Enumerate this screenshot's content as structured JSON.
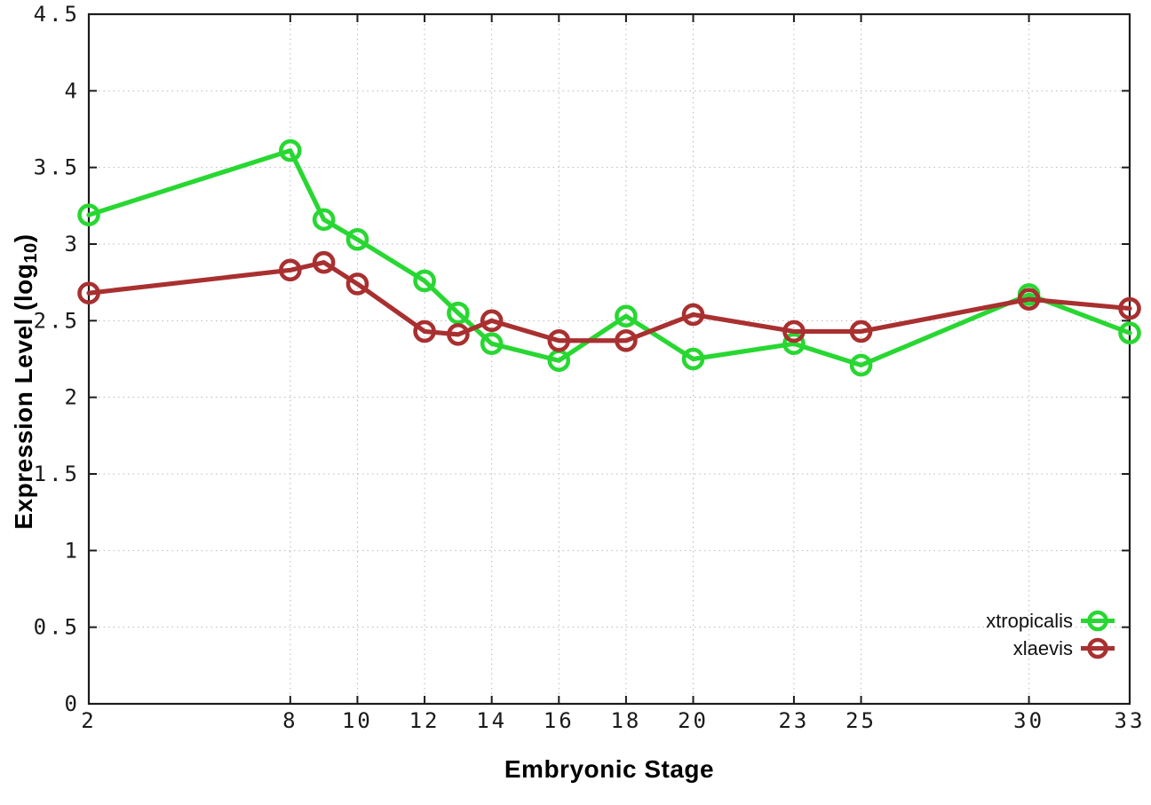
{
  "chart_data": {
    "type": "line",
    "title": "",
    "xlabel": "Embryonic Stage",
    "ylabel": {
      "prefix": "Expression Level (log",
      "sub": "10",
      "suffix": ")"
    },
    "x": [
      2,
      8,
      9,
      10,
      12,
      13,
      14,
      16,
      18,
      20,
      23,
      25,
      30,
      33
    ],
    "series": [
      {
        "name": "xtropicalis",
        "color": "#28d732",
        "values": [
          3.19,
          3.61,
          3.16,
          3.03,
          2.76,
          2.55,
          2.35,
          2.24,
          2.53,
          2.25,
          2.35,
          2.21,
          2.67,
          2.42
        ]
      },
      {
        "name": "xlaevis",
        "color": "#a93030",
        "values": [
          2.68,
          2.83,
          2.88,
          2.74,
          2.43,
          2.41,
          2.5,
          2.37,
          2.37,
          2.54,
          2.43,
          2.43,
          2.64,
          2.58
        ]
      }
    ],
    "x_ticks": [
      2,
      8,
      10,
      12,
      14,
      16,
      18,
      20,
      23,
      25,
      30,
      33
    ],
    "y_ticks": [
      0,
      0.5,
      1,
      1.5,
      2,
      2.5,
      3,
      3.5,
      4,
      4.5
    ],
    "xlim": [
      2,
      33
    ],
    "ylim": [
      0,
      4.5
    ],
    "grid": true,
    "legend_position": "inside-bottom-right",
    "style": {
      "axis_color": "#1c1c1c",
      "grid_color": "#b8b8b8",
      "tick_text_color": "#1a1a1a",
      "line_width": 5.2,
      "marker": "open-circle",
      "marker_radius": 10.5
    }
  }
}
